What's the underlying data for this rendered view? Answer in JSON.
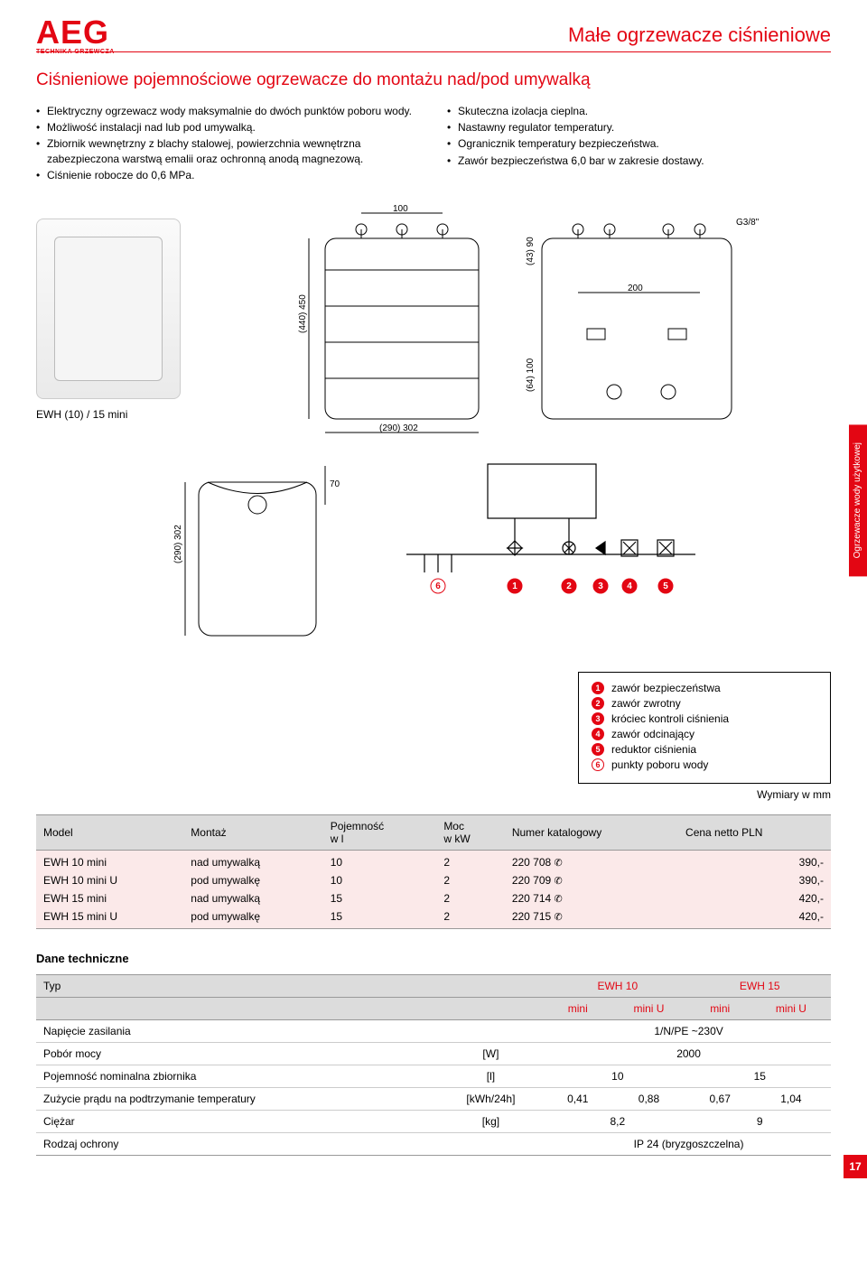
{
  "brand": {
    "logo": "AEG",
    "sub": "TECHNIKA GRZEWCZA"
  },
  "doc_title": "Małe ogrzewacze ciśnieniowe",
  "section_title": "Ciśnieniowe pojemnościowe ogrzewacze do montażu nad/pod umywalką",
  "bullets_left": [
    "Elektryczny ogrzewacz wody maksymalnie do dwóch punktów poboru wody.",
    "Możliwość instalacji nad lub pod umywalką.",
    "Zbiornik wewnętrzny z blachy stalowej, powierzchnia wewnętrzna zabezpieczona warstwą emalii oraz ochronną anodą magnezową.",
    "Ciśnienie robocze do 0,6 MPa."
  ],
  "bullets_right": [
    "Skuteczna izolacja cieplna.",
    "Nastawny regulator temperatury.",
    "Ogranicznik temperatury bezpieczeństwa.",
    "Zawór bezpieczeństwa 6,0 bar w zakresie dostawy."
  ],
  "model_caption": "EWH (10) / 15 mini",
  "side_tab": "Ogrzewacze wody\nużytkowej",
  "drawing": {
    "front": {
      "width_label": "100",
      "height_label": "(440) 450",
      "bottom_label": "(290) 302",
      "h2_label": "(64) 100"
    },
    "top_conn": {
      "thread": "G3/8\"",
      "spacing": "200",
      "height": "(43) 90"
    },
    "second_bottom": {
      "h": "(290) 302",
      "top_offset": "70"
    }
  },
  "schematic_nums": [
    "1",
    "2",
    "3",
    "4",
    "5",
    "6"
  ],
  "legend": [
    {
      "n": "1",
      "t": "zawór bezpieczeństwa",
      "cls": ""
    },
    {
      "n": "2",
      "t": "zawór zwrotny",
      "cls": ""
    },
    {
      "n": "3",
      "t": "króciec kontroli ciśnienia",
      "cls": ""
    },
    {
      "n": "4",
      "t": "zawór odcinający",
      "cls": ""
    },
    {
      "n": "5",
      "t": "reduktor ciśnienia",
      "cls": ""
    },
    {
      "n": "6",
      "t": "punkty poboru wody",
      "cls": "white"
    }
  ],
  "dim_note": "Wymiary w mm",
  "model_table": {
    "headers": [
      "Model",
      "Montaż",
      "Pojemność\nw l",
      "Moc\nw kW",
      "Numer katalogowy",
      "Cena netto PLN"
    ],
    "rows": [
      [
        "EWH 10 mini",
        "nad umywalką",
        "10",
        "2",
        "220 708",
        "390,-"
      ],
      [
        "EWH 10 mini U",
        "pod umywalkę",
        "10",
        "2",
        "220 709",
        "390,-"
      ],
      [
        "EWH 15 mini",
        "nad umywalką",
        "15",
        "2",
        "220 714",
        "420,-"
      ],
      [
        "EWH 15 mini U",
        "pod umywalkę",
        "15",
        "2",
        "220 715",
        "420,-"
      ]
    ]
  },
  "dane_title": "Dane techniczne",
  "spec": {
    "head_row1": [
      "Typ",
      "EWH 10",
      "EWH 15"
    ],
    "head_row2": [
      "",
      "mini",
      "mini U",
      "mini",
      "mini U"
    ],
    "rows": [
      {
        "label": "Napięcie zasilania",
        "unit": "",
        "cells": [
          {
            "v": "1/N/PE ~230V",
            "span": 4
          }
        ]
      },
      {
        "label": "Pobór mocy",
        "unit": "[W]",
        "cells": [
          {
            "v": "2000",
            "span": 4
          }
        ]
      },
      {
        "label": "Pojemność nominalna zbiornika",
        "unit": "[l]",
        "cells": [
          {
            "v": "10",
            "span": 2
          },
          {
            "v": "15",
            "span": 2
          }
        ]
      },
      {
        "label": "Zużycie prądu na podtrzymanie temperatury",
        "unit": "[kWh/24h]",
        "cells": [
          {
            "v": "0,41",
            "span": 1
          },
          {
            "v": "0,88",
            "span": 1
          },
          {
            "v": "0,67",
            "span": 1
          },
          {
            "v": "1,04",
            "span": 1
          }
        ]
      },
      {
        "label": "Ciężar",
        "unit": "[kg]",
        "cells": [
          {
            "v": "8,2",
            "span": 2
          },
          {
            "v": "9",
            "span": 2
          }
        ]
      },
      {
        "label": "Rodzaj ochrony",
        "unit": "",
        "cells": [
          {
            "v": "IP 24 (bryzgoszczelna)",
            "span": 4
          }
        ]
      }
    ]
  },
  "page_num": "17",
  "colors": {
    "accent": "#e30613",
    "row_bg": "#fbe9e9",
    "head_bg": "#dcdcdc"
  }
}
